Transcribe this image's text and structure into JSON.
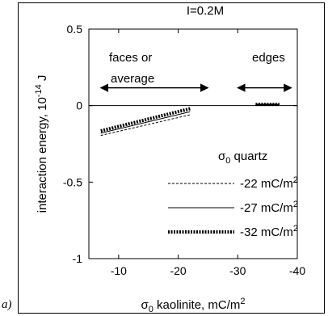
{
  "panel_label": "a)",
  "chart_data": {
    "type": "line",
    "title": "I=0.2M",
    "xlabel": "σ0 kaolinite, mC/m2",
    "xlabel_parts": {
      "sigma": "σ",
      "sub": "0",
      "text": " kaolinite, mC/m",
      "sup": "2"
    },
    "ylabel": "interaction energy, 10-14 J",
    "ylabel_parts": {
      "text": "interaction energy, 10",
      "sup": "-14",
      "unit": " J"
    },
    "xlim": [
      -5,
      -40
    ],
    "ylim": [
      -1,
      0.5
    ],
    "x_ticks": [
      -10,
      -20,
      -30,
      -40
    ],
    "x_tick_labels": [
      "-10",
      "-20",
      "-30",
      "-40"
    ],
    "y_ticks": [
      -1,
      -0.5,
      0,
      0.5
    ],
    "y_tick_labels": [
      "-1",
      "-0.5",
      "0",
      "0.5"
    ],
    "grid": false,
    "annotations": {
      "faces_line1": "faces or",
      "faces_line2": "average",
      "edges": "edges",
      "faces_arrow_x": [
        -7,
        -25
      ],
      "edges_arrow_x": [
        -30,
        -39
      ]
    },
    "legend": {
      "title_parts": {
        "sigma": "σ",
        "sub": "0",
        "text": " quartz"
      },
      "placement": "bottom-right"
    },
    "series": [
      {
        "name": "-22 mC/m2",
        "label_text": "-22 mC/m",
        "label_sup": "2",
        "style": "dashed",
        "segments": [
          {
            "x": [
              -7,
              -22
            ],
            "y": [
              -0.195,
              -0.06
            ]
          },
          {
            "x": [
              -33,
              -37
            ],
            "y": [
              0.003,
              0.003
            ]
          }
        ]
      },
      {
        "name": "-27 mC/m2",
        "label_text": "-27 mC/m",
        "label_sup": "2",
        "style": "solid",
        "segments": [
          {
            "x": [
              -7,
              -22
            ],
            "y": [
              -0.18,
              -0.04
            ]
          },
          {
            "x": [
              -33,
              -37
            ],
            "y": [
              0.006,
              0.006
            ]
          }
        ]
      },
      {
        "name": "-32 mC/m2",
        "label_text": "-32 mC/m",
        "label_sup": "2",
        "style": "thick-dotted",
        "segments": [
          {
            "x": [
              -7,
              -22
            ],
            "y": [
              -0.165,
              -0.02
            ]
          },
          {
            "x": [
              -33,
              -37
            ],
            "y": [
              0.01,
              0.01
            ]
          }
        ]
      }
    ]
  }
}
